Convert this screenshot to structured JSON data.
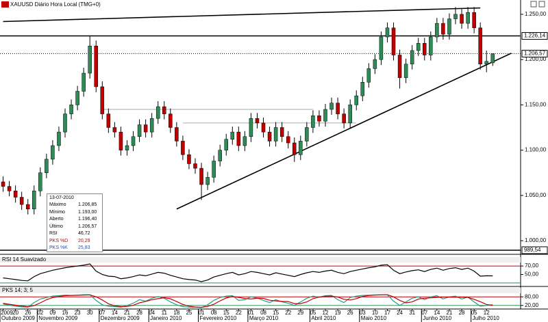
{
  "chart_data": {
    "type": "candlestick",
    "title": "XAUUSD Diário Hora Local (TMG+0)",
    "xlim": [
      0,
      84
    ],
    "xticks": [
      {
        "value": 0,
        "label": "2009"
      },
      {
        "value": 2,
        "label": "20"
      },
      {
        "value": 4,
        "label": "26"
      },
      {
        "value": 6,
        "label": "02"
      },
      {
        "value": 8,
        "label": "09"
      },
      {
        "value": 10,
        "label": "16"
      },
      {
        "value": 12,
        "label": "23"
      },
      {
        "value": 14,
        "label": "30"
      },
      {
        "value": 16,
        "label": "07"
      },
      {
        "value": 18,
        "label": "14"
      },
      {
        "value": 20,
        "label": "21"
      },
      {
        "value": 22,
        "label": "28"
      },
      {
        "value": 24,
        "label": "04"
      },
      {
        "value": 26,
        "label": "11"
      },
      {
        "value": 28,
        "label": "18"
      },
      {
        "value": 30,
        "label": "25"
      },
      {
        "value": 32,
        "label": "01"
      },
      {
        "value": 34,
        "label": "08"
      },
      {
        "value": 36,
        "label": "15"
      },
      {
        "value": 38,
        "label": "22"
      },
      {
        "value": 40,
        "label": "01"
      },
      {
        "value": 42,
        "label": "08"
      },
      {
        "value": 44,
        "label": "15"
      },
      {
        "value": 46,
        "label": "22"
      },
      {
        "value": 48,
        "label": "29"
      },
      {
        "value": 50,
        "label": "05"
      },
      {
        "value": 52,
        "label": "12"
      },
      {
        "value": 54,
        "label": "19"
      },
      {
        "value": 56,
        "label": "26"
      },
      {
        "value": 58,
        "label": "03"
      },
      {
        "value": 60,
        "label": "10"
      },
      {
        "value": 62,
        "label": "17"
      },
      {
        "value": 64,
        "label": "24"
      },
      {
        "value": 66,
        "label": "31"
      },
      {
        "value": 68,
        "label": "07"
      },
      {
        "value": 70,
        "label": "14"
      },
      {
        "value": 72,
        "label": "21"
      },
      {
        "value": 74,
        "label": "28"
      },
      {
        "value": 76,
        "label": "05"
      },
      {
        "value": 78,
        "label": "12"
      }
    ],
    "month_ticks": [
      {
        "value": 0,
        "label": "Outubro 2009"
      },
      {
        "value": 6,
        "label": "Novembro 2009"
      },
      {
        "value": 16,
        "label": "Dezembro 2009"
      },
      {
        "value": 24,
        "label": "Janeiro 2010"
      },
      {
        "value": 32,
        "label": "Fevereiro 2010"
      },
      {
        "value": 40,
        "label": "Março 2010"
      },
      {
        "value": 50,
        "label": "Abril 2010"
      },
      {
        "value": 58,
        "label": "Maio 2010"
      },
      {
        "value": 68,
        "label": "Junho 2010"
      },
      {
        "value": 76,
        "label": "Julho 2010"
      }
    ],
    "open": [
      1065,
      1060,
      1055,
      1048,
      1040,
      1035,
      1055,
      1075,
      1090,
      1105,
      1120,
      1140,
      1150,
      1165,
      1185,
      1215,
      1170,
      1140,
      1125,
      1120,
      1100,
      1105,
      1115,
      1128,
      1120,
      1135,
      1148,
      1140,
      1125,
      1110,
      1095,
      1085,
      1080,
      1062,
      1070,
      1088,
      1100,
      1112,
      1120,
      1105,
      1115,
      1135,
      1130,
      1120,
      1110,
      1125,
      1115,
      1108,
      1095,
      1110,
      1125,
      1138,
      1132,
      1145,
      1152,
      1140,
      1130,
      1150,
      1160,
      1175,
      1190,
      1200,
      1225,
      1235,
      1205,
      1180,
      1195,
      1210,
      1218,
      1205,
      1225,
      1240,
      1228,
      1245,
      1250,
      1240,
      1252,
      1235,
      1195,
      1196.4
    ],
    "high": [
      1071,
      1066,
      1061,
      1054,
      1046,
      1061,
      1081,
      1096,
      1111,
      1126,
      1146,
      1156,
      1171,
      1191,
      1226,
      1221,
      1176,
      1146,
      1131,
      1126,
      1111,
      1121,
      1134,
      1134,
      1141,
      1154,
      1154,
      1146,
      1131,
      1116,
      1101,
      1091,
      1086,
      1076,
      1094,
      1106,
      1118,
      1126,
      1126,
      1121,
      1141,
      1141,
      1136,
      1126,
      1131,
      1131,
      1121,
      1114,
      1116,
      1131,
      1144,
      1144,
      1151,
      1158,
      1158,
      1146,
      1156,
      1166,
      1181,
      1196,
      1206,
      1231,
      1241,
      1241,
      1211,
      1201,
      1216,
      1224,
      1224,
      1231,
      1246,
      1246,
      1251,
      1258,
      1256,
      1258,
      1258,
      1241,
      1210,
      1206.85
    ],
    "low": [
      1054,
      1049,
      1042,
      1034,
      1029,
      1029,
      1049,
      1069,
      1084,
      1099,
      1114,
      1134,
      1144,
      1159,
      1179,
      1164,
      1134,
      1119,
      1114,
      1094,
      1094,
      1099,
      1109,
      1114,
      1114,
      1129,
      1134,
      1119,
      1104,
      1089,
      1079,
      1074,
      1045,
      1056,
      1064,
      1082,
      1094,
      1106,
      1099,
      1099,
      1109,
      1124,
      1114,
      1104,
      1104,
      1109,
      1102,
      1087,
      1089,
      1104,
      1119,
      1126,
      1126,
      1139,
      1134,
      1124,
      1124,
      1144,
      1154,
      1169,
      1184,
      1194,
      1219,
      1199,
      1168,
      1174,
      1189,
      1204,
      1199,
      1199,
      1219,
      1222,
      1222,
      1239,
      1234,
      1234,
      1229,
      1189,
      1186,
      1193
    ],
    "close": [
      1060,
      1055,
      1048,
      1040,
      1035,
      1055,
      1075,
      1090,
      1105,
      1120,
      1140,
      1150,
      1165,
      1185,
      1215,
      1170,
      1140,
      1125,
      1120,
      1100,
      1105,
      1115,
      1128,
      1120,
      1135,
      1148,
      1140,
      1125,
      1110,
      1095,
      1085,
      1080,
      1062,
      1070,
      1088,
      1100,
      1112,
      1120,
      1105,
      1115,
      1135,
      1130,
      1120,
      1110,
      1125,
      1115,
      1108,
      1095,
      1110,
      1125,
      1138,
      1132,
      1145,
      1152,
      1140,
      1130,
      1150,
      1160,
      1175,
      1190,
      1200,
      1225,
      1235,
      1205,
      1180,
      1195,
      1210,
      1218,
      1205,
      1225,
      1240,
      1228,
      1245,
      1250,
      1240,
      1252,
      1235,
      1195,
      1198,
      1206.57
    ],
    "up_color": "#2e8b57",
    "down_color": "#c00000",
    "ylim": [
      988,
      1262
    ],
    "yticks": [
      {
        "value": 1000,
        "label": "1.000,00"
      },
      {
        "value": 1050,
        "label": "1.050,00"
      },
      {
        "value": 1100,
        "label": "1.100,00"
      },
      {
        "value": 1150,
        "label": "1.150,00"
      },
      {
        "value": 1200,
        "label": "1.200,00"
      },
      {
        "value": 1250,
        "label": "1.250,00"
      }
    ],
    "price_markers": [
      {
        "value": 1226.14,
        "label": "1.226,14",
        "style": "solid"
      },
      {
        "value": 1206.57,
        "label": "1.206,57",
        "style": "dotted"
      },
      {
        "value": 989.54,
        "label": "989,54",
        "style": "solid"
      }
    ],
    "trendlines": [
      {
        "points": [
          [
            0,
            1242
          ],
          [
            77,
            1257
          ]
        ],
        "color": "#000000"
      },
      {
        "points": [
          [
            28,
            1035
          ],
          [
            82,
            1207
          ]
        ],
        "color": "#000000"
      },
      {
        "points": [
          [
            16,
            1145
          ],
          [
            50,
            1145
          ]
        ],
        "color": "#aaaaaa"
      },
      {
        "points": [
          [
            29,
            1130
          ],
          [
            57,
            1130
          ]
        ],
        "color": "#aaaaaa"
      }
    ],
    "info_box": {
      "date": "13-07-2010",
      "rows": [
        [
          "Máximo",
          "1.206,85"
        ],
        [
          "Mínimo",
          "1.193,00"
        ],
        [
          "Aberto",
          "1.196,40"
        ],
        [
          "Último",
          "1.206,57"
        ],
        [
          "RSI",
          "46,72"
        ],
        [
          "PKS %D",
          "20,29"
        ],
        [
          "PKS %K",
          "25,83"
        ]
      ]
    },
    "rsi": {
      "title": "RSI 14 Suavizado",
      "color": "#000000",
      "ylim": [
        25,
        75
      ],
      "yticks": [
        {
          "value": 70,
          "label": "70,00"
        },
        {
          "value": 50,
          "label": "50,00"
        }
      ],
      "levels": [
        {
          "value": 70,
          "color": "#c00000"
        },
        {
          "value": 30,
          "color": "#2e8b57"
        }
      ],
      "values": [
        42,
        40,
        38,
        36,
        35,
        45,
        52,
        56,
        60,
        63,
        66,
        68,
        70,
        72,
        75,
        58,
        50,
        46,
        45,
        40,
        42,
        45,
        49,
        47,
        51,
        55,
        53,
        48,
        44,
        40,
        38,
        37,
        33,
        37,
        44,
        48,
        52,
        55,
        49,
        52,
        57,
        55,
        52,
        49,
        54,
        51,
        48,
        45,
        50,
        54,
        57,
        55,
        58,
        60,
        55,
        52,
        57,
        60,
        63,
        66,
        68,
        72,
        73,
        60,
        52,
        56,
        59,
        61,
        57,
        62,
        65,
        60,
        64,
        66,
        62,
        65,
        58,
        46,
        47,
        46.72
      ]
    },
    "stoch": {
      "title": "PKS 14; 3; 5",
      "ylim": [
        0,
        100
      ],
      "yticks": [
        {
          "value": 80,
          "label": "80,00"
        },
        {
          "value": 20,
          "label": "20,00"
        }
      ],
      "levels": [
        {
          "value": 80,
          "color": "#c00000"
        },
        {
          "value": 20,
          "color": "#2e8b57"
        }
      ],
      "series": [
        {
          "color": "#2a9a8a",
          "values": [
            30,
            22,
            15,
            10,
            8,
            40,
            65,
            75,
            85,
            88,
            92,
            90,
            92,
            95,
            95,
            55,
            25,
            15,
            12,
            8,
            20,
            35,
            60,
            50,
            70,
            82,
            70,
            45,
            25,
            12,
            8,
            8,
            5,
            25,
            55,
            75,
            85,
            88,
            55,
            60,
            80,
            72,
            55,
            40,
            60,
            45,
            35,
            20,
            45,
            70,
            85,
            78,
            88,
            90,
            60,
            40,
            75,
            85,
            90,
            92,
            94,
            95,
            95,
            50,
            20,
            45,
            70,
            80,
            60,
            80,
            88,
            65,
            80,
            85,
            65,
            78,
            45,
            15,
            20,
            25.83
          ]
        },
        {
          "color": "#c00000",
          "values": [
            35,
            28,
            22,
            16,
            11,
            19,
            38,
            60,
            75,
            83,
            88,
            90,
            91,
            92,
            94,
            81,
            58,
            32,
            17,
            12,
            13,
            21,
            38,
            48,
            60,
            67,
            74,
            66,
            47,
            27,
            15,
            9,
            7,
            13,
            28,
            52,
            72,
            83,
            76,
            68,
            65,
            71,
            69,
            56,
            52,
            48,
            47,
            33,
            33,
            45,
            67,
            78,
            84,
            85,
            79,
            63,
            58,
            67,
            83,
            89,
            92,
            94,
            95,
            80,
            55,
            38,
            45,
            65,
            70,
            73,
            76,
            78,
            78,
            77,
            77,
            76,
            63,
            46,
            27,
            20.29
          ]
        }
      ]
    }
  }
}
